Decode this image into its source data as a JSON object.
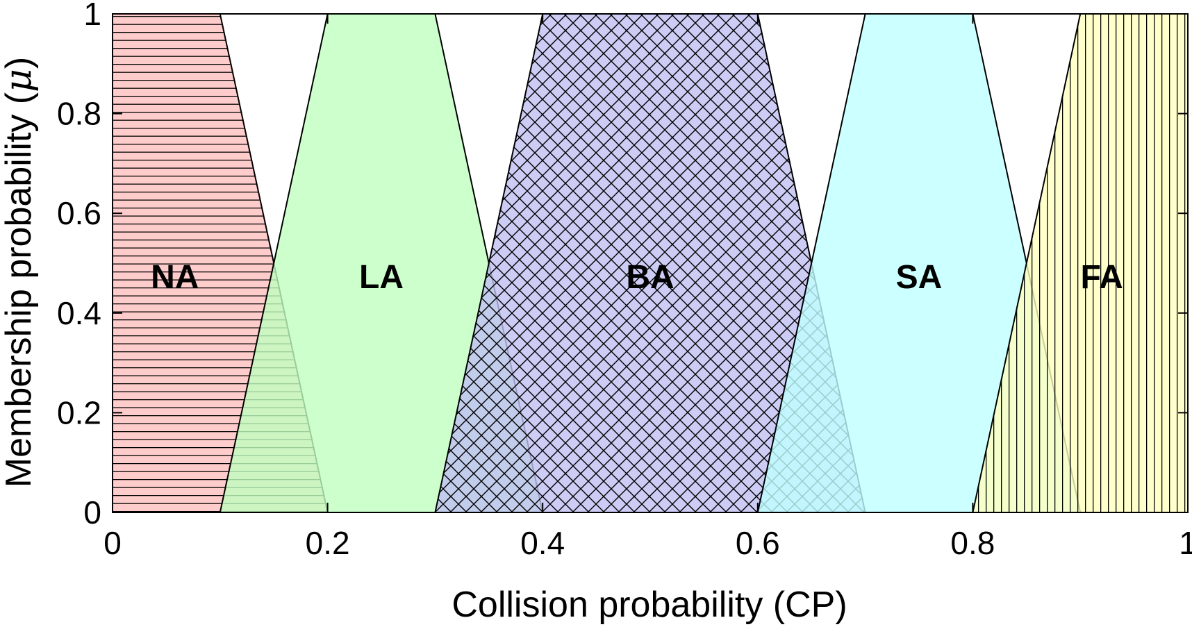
{
  "chart_data": {
    "type": "area",
    "xlabel": "Collision probability (CP)",
    "ylabel_text": "Membership probability (",
    "ylabel_symbol": "μ",
    "ylabel_close": ")",
    "xlim": [
      0,
      1
    ],
    "ylim": [
      0,
      1
    ],
    "x_ticks": [
      0,
      0.2,
      0.4,
      0.6,
      0.8,
      1
    ],
    "x_tick_labels": [
      "0",
      "0.2",
      "0.4",
      "0.6",
      "0.8",
      "1"
    ],
    "y_ticks": [
      0,
      0.2,
      0.4,
      0.6,
      0.8,
      1
    ],
    "y_tick_labels": [
      "0",
      "0.2",
      "0.4",
      "0.6",
      "0.8",
      "1"
    ],
    "grid": false,
    "series": [
      {
        "name": "NA",
        "shape": "trapezoid",
        "points": [
          [
            0,
            0
          ],
          [
            0,
            1
          ],
          [
            0.1,
            1
          ],
          [
            0.2,
            0
          ]
        ],
        "color": "#ffbfbf",
        "pattern": "horizontal",
        "label_x": 0.058
      },
      {
        "name": "LA",
        "shape": "trapezoid",
        "points": [
          [
            0.1,
            0
          ],
          [
            0.2,
            1
          ],
          [
            0.3,
            1
          ],
          [
            0.4,
            0
          ]
        ],
        "color": "#bfffbf",
        "pattern": "none",
        "label_x": 0.25
      },
      {
        "name": "BA",
        "shape": "trapezoid",
        "points": [
          [
            0.3,
            0
          ],
          [
            0.4,
            1
          ],
          [
            0.6,
            1
          ],
          [
            0.7,
            0
          ]
        ],
        "color": "#bfbff2",
        "pattern": "crosshatch",
        "label_x": 0.5
      },
      {
        "name": "SA",
        "shape": "trapezoid",
        "points": [
          [
            0.6,
            0
          ],
          [
            0.7,
            1
          ],
          [
            0.8,
            1
          ],
          [
            0.9,
            0
          ]
        ],
        "color": "#bfffff",
        "pattern": "none",
        "label_x": 0.75
      },
      {
        "name": "FA",
        "shape": "trapezoid",
        "points": [
          [
            0.8,
            0
          ],
          [
            0.9,
            1
          ],
          [
            1,
            1
          ],
          [
            1,
            0
          ]
        ],
        "color": "#ffffbf",
        "pattern": "vertical",
        "label_x": 0.92
      }
    ],
    "label_y": 0.45
  }
}
